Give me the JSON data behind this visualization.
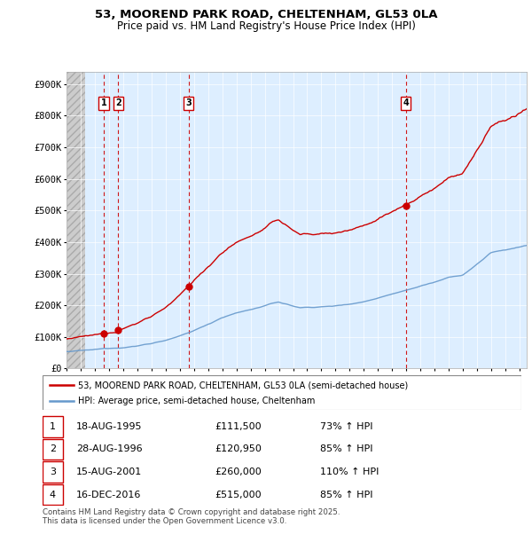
{
  "title_line1": "53, MOOREND PARK ROAD, CHELTENHAM, GL53 0LA",
  "title_line2": "Price paid vs. HM Land Registry's House Price Index (HPI)",
  "ylabel_ticks": [
    "£0",
    "£100K",
    "£200K",
    "£300K",
    "£400K",
    "£500K",
    "£600K",
    "£700K",
    "£800K",
    "£900K"
  ],
  "ytick_values": [
    0,
    100000,
    200000,
    300000,
    400000,
    500000,
    600000,
    700000,
    800000,
    900000
  ],
  "ylim": [
    0,
    940000
  ],
  "xlim_start": 1993.0,
  "xlim_end": 2025.5,
  "sale_dates": [
    1995.635,
    1996.655,
    2001.619,
    2016.956
  ],
  "sale_prices": [
    111500,
    120950,
    260000,
    515000
  ],
  "sale_labels": [
    "1",
    "2",
    "3",
    "4"
  ],
  "hpi_color": "#6699cc",
  "price_color": "#cc0000",
  "vline_color": "#cc0000",
  "legend_entry1": "53, MOOREND PARK ROAD, CHELTENHAM, GL53 0LA (semi-detached house)",
  "legend_entry2": "HPI: Average price, semi-detached house, Cheltenham",
  "table_rows": [
    [
      "1",
      "18-AUG-1995",
      "£111,500",
      "73% ↑ HPI"
    ],
    [
      "2",
      "28-AUG-1996",
      "£120,950",
      "85% ↑ HPI"
    ],
    [
      "3",
      "15-AUG-2001",
      "£260,000",
      "110% ↑ HPI"
    ],
    [
      "4",
      "16-DEC-2016",
      "£515,000",
      "85% ↑ HPI"
    ]
  ],
  "footnote": "Contains HM Land Registry data © Crown copyright and database right 2025.\nThis data is licensed under the Open Government Licence v3.0."
}
